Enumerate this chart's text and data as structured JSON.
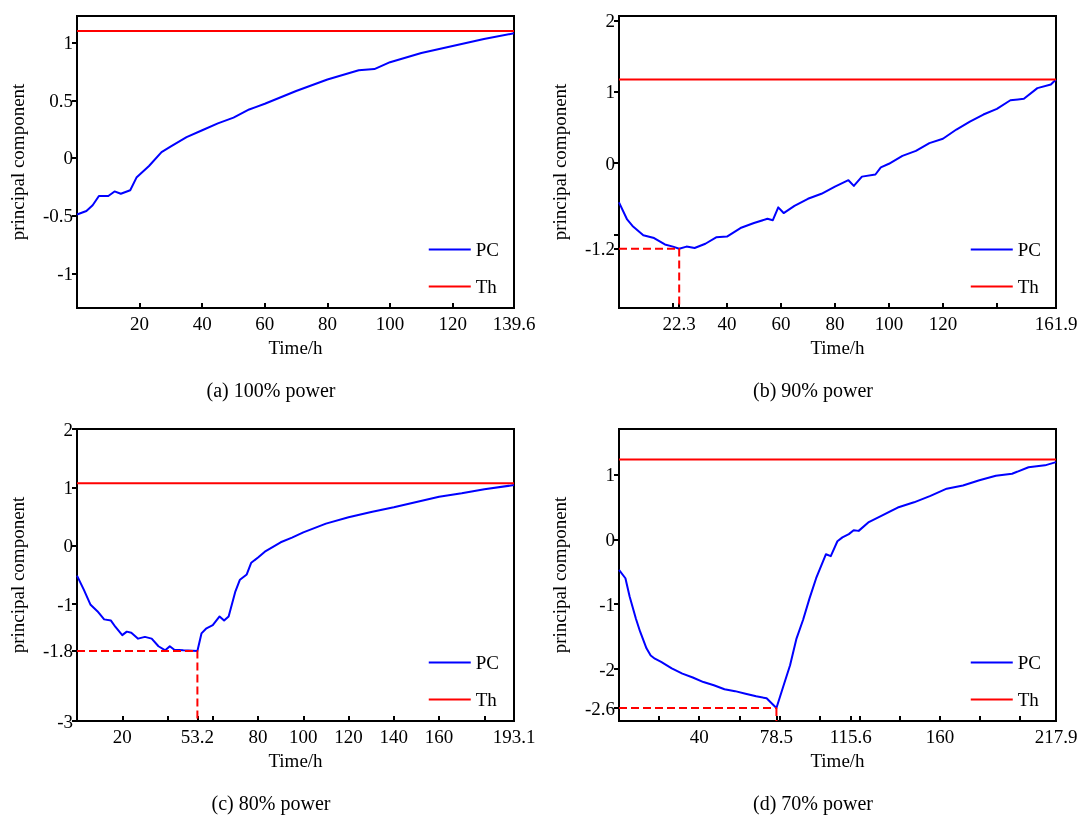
{
  "chart_data": [
    {
      "type": "line",
      "title": "(a) 100% power",
      "xlabel": "Time/h",
      "ylabel": "principal component",
      "legend": "bottom right",
      "marker": "none",
      "xlim": [
        0,
        139.6
      ],
      "ylim": [
        -1.3,
        1.23
      ],
      "xticks": [
        20,
        40,
        60,
        80,
        100,
        120,
        139.6
      ],
      "yticks": [
        -1,
        -0.5,
        0,
        0.5,
        1
      ],
      "series": [
        {
          "name": "PC",
          "color": "#0000ff",
          "x": [
            0,
            3,
            5,
            7,
            10,
            12,
            14,
            17,
            19,
            23,
            27,
            30,
            35,
            40,
            45,
            50,
            55,
            60,
            70,
            80,
            90,
            95,
            100,
            110,
            120,
            130,
            139.6
          ],
          "values": [
            -0.49,
            -0.46,
            -0.41,
            -0.33,
            -0.33,
            -0.29,
            -0.31,
            -0.28,
            -0.17,
            -0.07,
            0.05,
            0.1,
            0.18,
            0.24,
            0.3,
            0.35,
            0.42,
            0.47,
            0.58,
            0.68,
            0.76,
            0.77,
            0.83,
            0.91,
            0.97,
            1.03,
            1.08
          ]
        },
        {
          "name": "Th",
          "color": "#ff0000",
          "x": [
            0,
            139.6
          ],
          "values": [
            1.1,
            1.1
          ]
        }
      ]
    },
    {
      "type": "line",
      "title": "(b) 90% power",
      "xlabel": "Time/h",
      "ylabel": "principal component",
      "legend": "bottom right",
      "marker": "none",
      "xlim": [
        0,
        161.9
      ],
      "ylim": [
        -2.03,
        2.06
      ],
      "xticks": [
        {
          "value": 20,
          "label": null
        },
        22.3,
        40,
        60,
        80,
        100,
        120,
        {
          "value": 140,
          "label": null
        },
        161.9
      ],
      "yticks": [
        -1.2,
        {
          "value": -1,
          "label": null
        },
        0,
        1,
        2
      ],
      "series": [
        {
          "name": "PC",
          "color": "#0000ff",
          "x": [
            0,
            3,
            5,
            9,
            13,
            17,
            20,
            22.3,
            25,
            28,
            32,
            36,
            40,
            45,
            50,
            55,
            57,
            59,
            61,
            65,
            70,
            75,
            80,
            85,
            87,
            90,
            95,
            97,
            100,
            105,
            110,
            115,
            120,
            125,
            130,
            135,
            140,
            145,
            150,
            155,
            160,
            161.9
          ],
          "values": [
            -0.55,
            -0.79,
            -0.88,
            -1.01,
            -1.05,
            -1.14,
            -1.17,
            -1.2,
            -1.17,
            -1.19,
            -1.13,
            -1.04,
            -1.03,
            -0.91,
            -0.84,
            -0.78,
            -0.8,
            -0.62,
            -0.7,
            -0.6,
            -0.5,
            -0.43,
            -0.33,
            -0.24,
            -0.32,
            -0.19,
            -0.16,
            -0.06,
            -0.01,
            0.1,
            0.17,
            0.28,
            0.34,
            0.47,
            0.58,
            0.68,
            0.76,
            0.88,
            0.9,
            1.05,
            1.1,
            1.17
          ]
        },
        {
          "name": "Th",
          "color": "#ff0000",
          "x": [
            0,
            161.9
          ],
          "values": [
            1.17,
            1.17
          ]
        },
        {
          "color": "#ff0000",
          "line_style": "dashed",
          "x": [
            0,
            22.3,
            22.3
          ],
          "values": [
            -1.2,
            -1.2,
            -2.03
          ]
        }
      ]
    },
    {
      "type": "line",
      "title": "(c) 80% power",
      "xlabel": "Time/h",
      "ylabel": "principal component",
      "legend": "bottom right",
      "marker": "none",
      "xlim": [
        0,
        193.1
      ],
      "ylim": [
        -3,
        2
      ],
      "xticks": [
        20,
        {
          "value": 40,
          "label": null
        },
        53.2,
        {
          "value": 60,
          "label": null
        },
        80,
        100,
        120,
        140,
        160,
        {
          "value": 180,
          "label": null
        },
        193.1
      ],
      "yticks": [
        -3,
        -1.8,
        -1,
        0,
        1,
        2
      ],
      "series": [
        {
          "name": "PC",
          "color": "#0000ff",
          "x": [
            0,
            3,
            6,
            9,
            12,
            15,
            17,
            20,
            22,
            24,
            27,
            30,
            33,
            36,
            39,
            41,
            43,
            47,
            53.2,
            55,
            57,
            60,
            63,
            65,
            67,
            70,
            72,
            75,
            77,
            80,
            83,
            90,
            95,
            100,
            110,
            120,
            130,
            140,
            150,
            160,
            170,
            180,
            193.1
          ],
          "values": [
            -0.51,
            -0.75,
            -1.01,
            -1.12,
            -1.26,
            -1.28,
            -1.39,
            -1.53,
            -1.47,
            -1.49,
            -1.59,
            -1.56,
            -1.59,
            -1.72,
            -1.79,
            -1.72,
            -1.78,
            -1.79,
            -1.8,
            -1.5,
            -1.42,
            -1.36,
            -1.21,
            -1.28,
            -1.21,
            -0.78,
            -0.58,
            -0.49,
            -0.29,
            -0.2,
            -0.1,
            0.06,
            0.14,
            0.23,
            0.38,
            0.49,
            0.58,
            0.66,
            0.75,
            0.84,
            0.9,
            0.97,
            1.04
          ]
        },
        {
          "name": "Th",
          "color": "#ff0000",
          "x": [
            0,
            193.1
          ],
          "values": [
            1.07,
            1.07
          ]
        },
        {
          "color": "#ff0000",
          "line_style": "dashed",
          "x": [
            0,
            53.2,
            53.2
          ],
          "values": [
            -1.8,
            -1.8,
            -3
          ]
        }
      ]
    },
    {
      "type": "line",
      "title": "(d) 70% power",
      "xlabel": "Time/h",
      "ylabel": "principal component",
      "legend": "bottom right",
      "marker": "none",
      "xlim": [
        0,
        217.9
      ],
      "ylim": [
        -2.8,
        1.7
      ],
      "xticks": [
        {
          "value": 20,
          "label": null
        },
        40,
        {
          "value": 60,
          "label": null
        },
        78.5,
        {
          "value": 80,
          "label": null
        },
        {
          "value": 100,
          "label": null
        },
        115.6,
        {
          "value": 120,
          "label": null
        },
        {
          "value": 140,
          "label": null
        },
        160,
        {
          "value": 180,
          "label": null
        },
        {
          "value": 200,
          "label": null
        },
        217.9
      ],
      "yticks": [
        -2.6,
        -2,
        -1,
        0,
        1
      ],
      "series": [
        {
          "name": "PC",
          "color": "#0000ff",
          "x": [
            0,
            3.2,
            5.3,
            8.4,
            10.5,
            13.7,
            15.8,
            17.9,
            21,
            26.3,
            31.6,
            36.8,
            42.1,
            47.3,
            52.6,
            57.9,
            63.1,
            68.4,
            73.6,
            78.5,
            82.1,
            85.3,
            88.5,
            91.8,
            95,
            98.3,
            103.2,
            105.6,
            108.9,
            111.4,
            114.6,
            117,
            119.5,
            124.3,
            130.8,
            139,
            147.1,
            155.3,
            163.4,
            171.5,
            179.7,
            187.9,
            196,
            204.2,
            212.4,
            217.9
          ],
          "values": [
            -0.47,
            -0.6,
            -0.88,
            -1.22,
            -1.42,
            -1.68,
            -1.79,
            -1.84,
            -1.89,
            -1.99,
            -2.07,
            -2.13,
            -2.2,
            -2.25,
            -2.31,
            -2.34,
            -2.38,
            -2.42,
            -2.45,
            -2.6,
            -2.25,
            -1.94,
            -1.53,
            -1.24,
            -0.91,
            -0.6,
            -0.23,
            -0.26,
            -0.03,
            0.03,
            0.08,
            0.14,
            0.13,
            0.26,
            0.36,
            0.49,
            0.57,
            0.67,
            0.78,
            0.83,
            0.91,
            0.98,
            1.01,
            1.11,
            1.14,
            1.19
          ]
        },
        {
          "name": "Th",
          "color": "#ff0000",
          "x": [
            0,
            217.9
          ],
          "values": [
            1.23,
            1.23
          ]
        },
        {
          "color": "#ff0000",
          "line_style": "dashed",
          "x": [
            0,
            78.5
          ],
          "values": [
            -2.6,
            -2.6
          ]
        },
        {
          "color": "#ff0000",
          "line_style": "dashed",
          "x": [
            78.5,
            78.5
          ],
          "values": [
            -2.6,
            -2.8
          ]
        }
      ]
    }
  ]
}
